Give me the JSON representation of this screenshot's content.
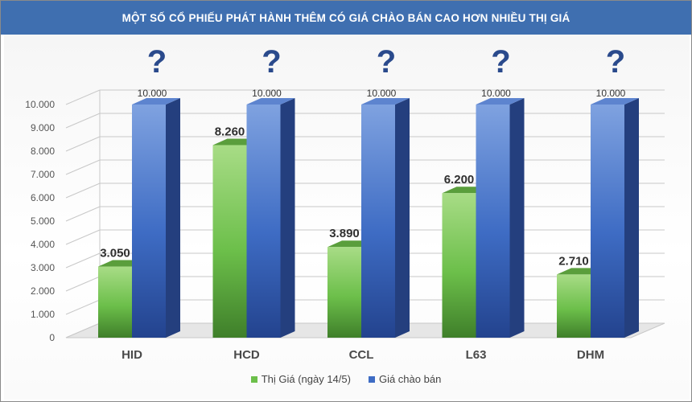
{
  "header": {
    "title": "MỘT SỐ CỔ PHIẾU PHÁT HÀNH THÊM CÓ GIÁ CHÀO BÁN CAO HƠN NHIỀU THỊ GIÁ"
  },
  "colors": {
    "title_bar": "#3f6fb0",
    "series_green": "#6cbf4a",
    "series_blue": "#3e6cc4",
    "question_mark": "#2a4a8c"
  },
  "chart_data": {
    "type": "bar",
    "title": "MỘT SỐ CỔ PHIẾU PHÁT HÀNH THÊM CÓ GIÁ CHÀO BÁN CAO HƠN NHIỀU THỊ GIÁ",
    "categories": [
      "HID",
      "HCD",
      "CCL",
      "L63",
      "DHM"
    ],
    "series": [
      {
        "name": "Thị Giá (ngày 14/5)",
        "values": [
          3050,
          8260,
          3890,
          6200,
          2710
        ],
        "labels": [
          "3.050",
          "8.260",
          "3.890",
          "6.200",
          "2.710"
        ],
        "color": "#6cbf4a"
      },
      {
        "name": "Giá chào bán",
        "values": [
          10000,
          10000,
          10000,
          10000,
          10000
        ],
        "labels": [
          "10.000",
          "10.000",
          "10.000",
          "10.000",
          "10.000"
        ],
        "color": "#3e6cc4"
      }
    ],
    "annotations": [
      "?",
      "?",
      "?",
      "?",
      "?"
    ],
    "yticks": [
      "0",
      "1.000",
      "2.000",
      "3.000",
      "4.000",
      "5.000",
      "6.000",
      "7.000",
      "8.000",
      "9.000",
      "10.000"
    ],
    "ylim": [
      0,
      10000
    ],
    "grid": true,
    "style": "3d-columns",
    "legend_position": "bottom"
  }
}
